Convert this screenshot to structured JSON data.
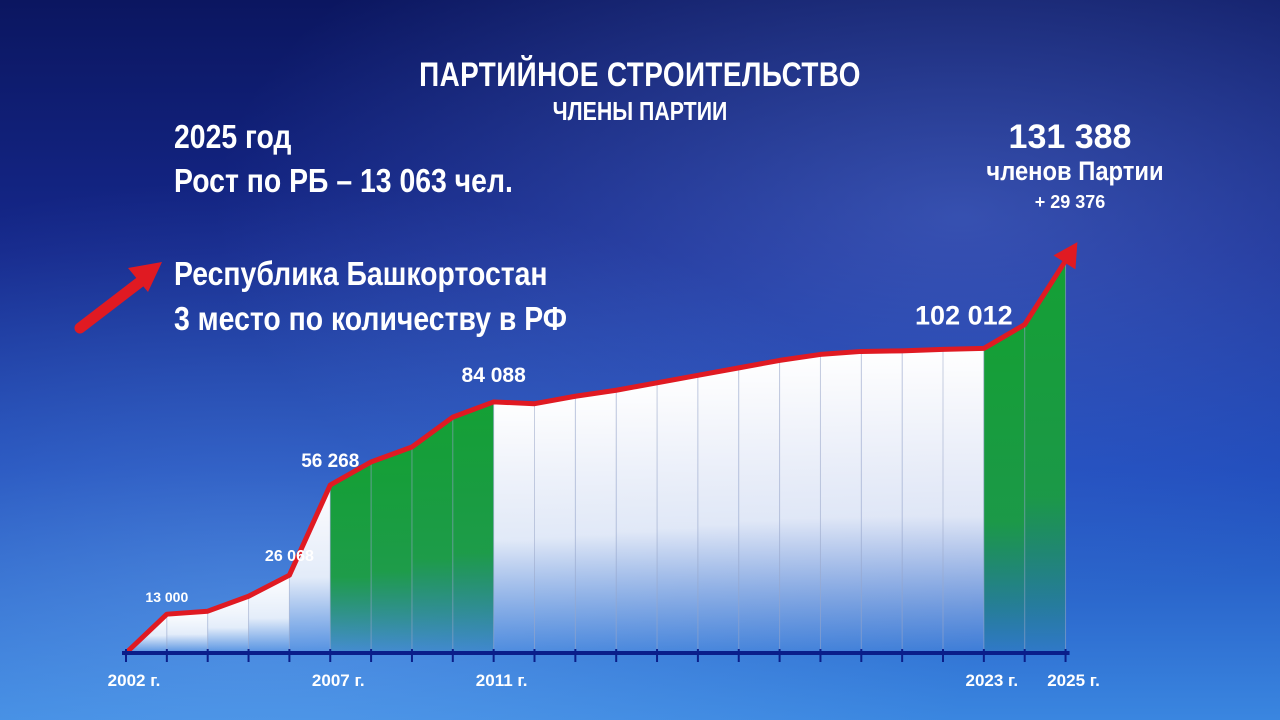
{
  "title": "ПАРТИЙНОЕ СТРОИТЕЛЬСТВО",
  "subtitle": "ЧЛЕНЫ ПАРТИИ",
  "info": {
    "year_line": "2025 год",
    "growth_line": "Рост по РБ – 13 063 чел.",
    "region_line": "Республика Башкортостан",
    "rank_line": "3 место по количеству в РФ"
  },
  "total": {
    "value": "131 388",
    "label": "членов Партии",
    "delta": "+ 29 376"
  },
  "colors": {
    "line": "#e01a22",
    "green": "#1a9a3a",
    "white": "#ffffff",
    "axis": "#0a1e8a"
  },
  "chart_data": {
    "type": "area",
    "x": [
      2002,
      2003,
      2004,
      2005,
      2006,
      2007,
      2008,
      2009,
      2010,
      2011,
      2012,
      2013,
      2014,
      2015,
      2016,
      2017,
      2018,
      2019,
      2020,
      2021,
      2022,
      2023,
      2024,
      2025
    ],
    "values": [
      0,
      13000,
      14000,
      19000,
      26068,
      56268,
      64000,
      69000,
      79000,
      84088,
      83500,
      86000,
      88000,
      90500,
      93000,
      95500,
      98000,
      100000,
      101000,
      101200,
      101700,
      102012,
      110000,
      131388
    ],
    "x_tick_labels": [
      {
        "x": 2002,
        "label": "2002 г."
      },
      {
        "x": 2007,
        "label": "2007 г."
      },
      {
        "x": 2011,
        "label": "2011 г."
      },
      {
        "x": 2023,
        "label": "2023 г."
      },
      {
        "x": 2025,
        "label": "2025 г."
      }
    ],
    "data_labels": [
      {
        "x": 2003,
        "label": "13 000"
      },
      {
        "x": 2006,
        "label": "26 068"
      },
      {
        "x": 2007,
        "label": "56 268"
      },
      {
        "x": 2011,
        "label": "84 088"
      },
      {
        "x": 2023,
        "label": "102 012"
      }
    ],
    "green_ranges": [
      [
        2007,
        2011
      ],
      [
        2023,
        2025
      ]
    ],
    "ylim": [
      0,
      140000
    ]
  }
}
